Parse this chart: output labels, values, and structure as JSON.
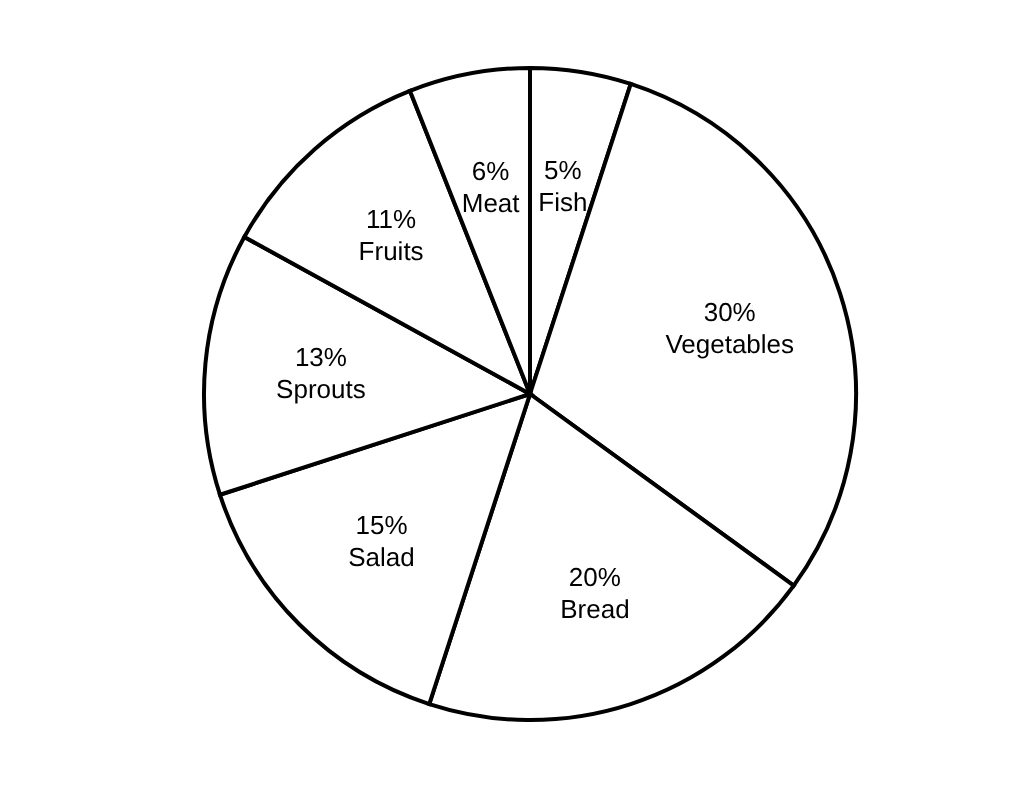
{
  "chart_data": {
    "type": "pie",
    "categories": [
      "Fish",
      "Vegetables",
      "Bread",
      "Salad",
      "Sprouts",
      "Fruits",
      "Meat"
    ],
    "values": [
      5,
      30,
      20,
      15,
      13,
      11,
      6
    ],
    "colors": [
      "#ffffff",
      "#ffffff",
      "#ffffff",
      "#ffffff",
      "#ffffff",
      "#ffffff",
      "#ffffff"
    ],
    "value_labels": [
      "5%",
      "30%",
      "20%",
      "15%",
      "13%",
      "11%",
      "6%"
    ],
    "legend": false
  }
}
